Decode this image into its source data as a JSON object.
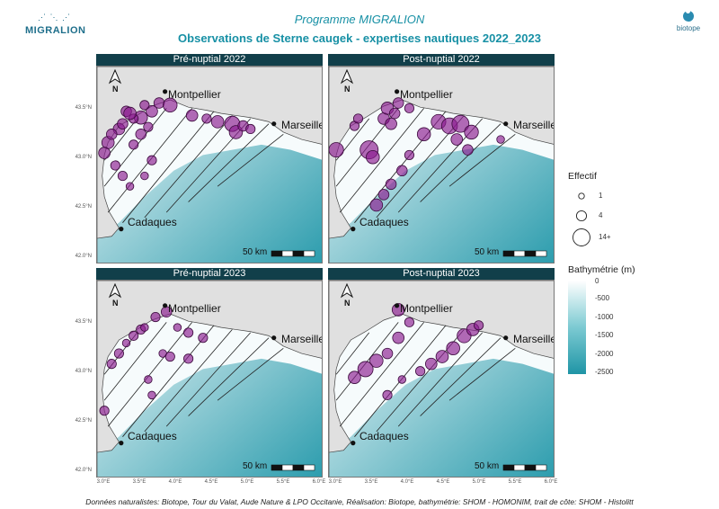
{
  "header": {
    "logo_left": "MIGRALION",
    "logo_right": "biotope",
    "title1": "Programme MIGRALION",
    "title2": "Observations de Sterne caugek - expertises nautiques 2022_2023"
  },
  "panels": [
    {
      "title": "Pré-nuptial 2022"
    },
    {
      "title": "Post-nuptial 2022"
    },
    {
      "title": "Pré-nuptial 2023"
    },
    {
      "title": "Post-nuptial 2023"
    }
  ],
  "map_labels": {
    "cities": [
      "Montpellier",
      "Marseille",
      "Cadaques"
    ],
    "north_arrow": "N",
    "scale": "50 km",
    "lat_ticks": [
      "43.5°N",
      "43.0°N",
      "42.5°N",
      "42.0°N"
    ],
    "lon_ticks": [
      "3.0°E",
      "3.5°E",
      "4.0°E",
      "4.5°E",
      "5.0°E",
      "5.5°E",
      "6.0°E"
    ]
  },
  "legend": {
    "effectif_title": "Effectif",
    "effectif_items": [
      {
        "label": "1",
        "count": 1
      },
      {
        "label": "4",
        "count": 4
      },
      {
        "label": "14+",
        "count": 14
      }
    ],
    "bathy_title": "Bathymétrie (m)",
    "bathy_ticks": [
      "0",
      "-500",
      "-1000",
      "-1500",
      "-2000",
      "-2500"
    ]
  },
  "colors": {
    "header_band": "#113f4a",
    "land": "#e0e0e0",
    "sea_shallow": "#ffffff",
    "sea_deep": "#2b9cad",
    "observation": "#8b1a8f",
    "title": "#1790a5"
  },
  "observations": [
    [
      {
        "lon": 3.35,
        "lat": 43.42,
        "n": 3
      },
      {
        "lon": 3.55,
        "lat": 43.36,
        "n": 6
      },
      {
        "lon": 3.7,
        "lat": 43.42,
        "n": 4
      },
      {
        "lon": 3.45,
        "lat": 43.35,
        "n": 2
      },
      {
        "lon": 3.25,
        "lat": 43.25,
        "n": 4
      },
      {
        "lon": 3.1,
        "lat": 43.12,
        "n": 5
      },
      {
        "lon": 3.05,
        "lat": 43.02,
        "n": 4
      },
      {
        "lon": 3.15,
        "lat": 43.2,
        "n": 3
      },
      {
        "lon": 3.3,
        "lat": 43.3,
        "n": 3
      },
      {
        "lon": 3.4,
        "lat": 43.4,
        "n": 5
      },
      {
        "lon": 3.6,
        "lat": 43.48,
        "n": 2
      },
      {
        "lon": 3.8,
        "lat": 43.5,
        "n": 3
      },
      {
        "lon": 3.95,
        "lat": 43.48,
        "n": 7
      },
      {
        "lon": 4.25,
        "lat": 43.38,
        "n": 4
      },
      {
        "lon": 4.45,
        "lat": 43.35,
        "n": 2
      },
      {
        "lon": 4.6,
        "lat": 43.32,
        "n": 5
      },
      {
        "lon": 4.8,
        "lat": 43.3,
        "n": 9
      },
      {
        "lon": 4.85,
        "lat": 43.22,
        "n": 6
      },
      {
        "lon": 4.95,
        "lat": 43.28,
        "n": 3
      },
      {
        "lon": 5.05,
        "lat": 43.25,
        "n": 2
      },
      {
        "lon": 3.45,
        "lat": 43.1,
        "n": 2
      },
      {
        "lon": 3.55,
        "lat": 43.2,
        "n": 3
      },
      {
        "lon": 3.2,
        "lat": 42.9,
        "n": 2
      },
      {
        "lon": 3.3,
        "lat": 42.8,
        "n": 2
      },
      {
        "lon": 3.4,
        "lat": 42.7,
        "n": 1
      },
      {
        "lon": 3.6,
        "lat": 42.8,
        "n": 1
      },
      {
        "lon": 3.7,
        "lat": 42.95,
        "n": 2
      },
      {
        "lon": 3.65,
        "lat": 43.27,
        "n": 2
      }
    ],
    [
      {
        "lon": 3.05,
        "lat": 43.05,
        "n": 8
      },
      {
        "lon": 3.5,
        "lat": 43.05,
        "n": 14
      },
      {
        "lon": 3.55,
        "lat": 42.98,
        "n": 6
      },
      {
        "lon": 3.7,
        "lat": 43.35,
        "n": 4
      },
      {
        "lon": 3.75,
        "lat": 43.45,
        "n": 5
      },
      {
        "lon": 3.85,
        "lat": 43.4,
        "n": 3
      },
      {
        "lon": 3.9,
        "lat": 43.5,
        "n": 3
      },
      {
        "lon": 4.05,
        "lat": 43.45,
        "n": 2
      },
      {
        "lon": 4.25,
        "lat": 43.2,
        "n": 6
      },
      {
        "lon": 4.45,
        "lat": 43.32,
        "n": 8
      },
      {
        "lon": 4.6,
        "lat": 43.28,
        "n": 10
      },
      {
        "lon": 4.75,
        "lat": 43.3,
        "n": 12
      },
      {
        "lon": 4.9,
        "lat": 43.22,
        "n": 7
      },
      {
        "lon": 4.7,
        "lat": 43.15,
        "n": 4
      },
      {
        "lon": 4.85,
        "lat": 43.05,
        "n": 3
      },
      {
        "lon": 3.3,
        "lat": 43.28,
        "n": 2
      },
      {
        "lon": 3.35,
        "lat": 43.35,
        "n": 2
      },
      {
        "lon": 3.6,
        "lat": 42.52,
        "n": 5
      },
      {
        "lon": 3.7,
        "lat": 42.62,
        "n": 3
      },
      {
        "lon": 3.8,
        "lat": 42.72,
        "n": 3
      },
      {
        "lon": 3.95,
        "lat": 42.85,
        "n": 3
      },
      {
        "lon": 4.05,
        "lat": 43.0,
        "n": 2
      },
      {
        "lon": 5.3,
        "lat": 43.15,
        "n": 1
      },
      {
        "lon": 3.8,
        "lat": 43.3,
        "n": 4
      }
    ],
    [
      {
        "lon": 3.9,
        "lat": 43.55,
        "n": 3
      },
      {
        "lon": 3.75,
        "lat": 43.5,
        "n": 2
      },
      {
        "lon": 3.55,
        "lat": 43.38,
        "n": 2
      },
      {
        "lon": 3.45,
        "lat": 43.32,
        "n": 2
      },
      {
        "lon": 3.35,
        "lat": 43.25,
        "n": 1
      },
      {
        "lon": 3.25,
        "lat": 43.15,
        "n": 2
      },
      {
        "lon": 3.15,
        "lat": 43.05,
        "n": 2
      },
      {
        "lon": 4.2,
        "lat": 43.35,
        "n": 2
      },
      {
        "lon": 4.4,
        "lat": 43.3,
        "n": 2
      },
      {
        "lon": 4.2,
        "lat": 43.1,
        "n": 2
      },
      {
        "lon": 3.85,
        "lat": 43.15,
        "n": 1
      },
      {
        "lon": 3.05,
        "lat": 42.6,
        "n": 2
      },
      {
        "lon": 3.7,
        "lat": 42.75,
        "n": 1
      },
      {
        "lon": 3.65,
        "lat": 42.9,
        "n": 1
      },
      {
        "lon": 3.95,
        "lat": 43.12,
        "n": 2
      },
      {
        "lon": 4.05,
        "lat": 43.4,
        "n": 1
      },
      {
        "lon": 3.6,
        "lat": 43.4,
        "n": 1
      }
    ],
    [
      {
        "lon": 3.9,
        "lat": 43.57,
        "n": 5
      },
      {
        "lon": 4.05,
        "lat": 43.45,
        "n": 2
      },
      {
        "lon": 3.6,
        "lat": 43.08,
        "n": 6
      },
      {
        "lon": 3.45,
        "lat": 43.0,
        "n": 9
      },
      {
        "lon": 3.3,
        "lat": 42.92,
        "n": 5
      },
      {
        "lon": 3.75,
        "lat": 43.15,
        "n": 3
      },
      {
        "lon": 3.9,
        "lat": 43.3,
        "n": 4
      },
      {
        "lon": 4.35,
        "lat": 43.05,
        "n": 4
      },
      {
        "lon": 4.5,
        "lat": 43.12,
        "n": 5
      },
      {
        "lon": 4.65,
        "lat": 43.2,
        "n": 6
      },
      {
        "lon": 4.8,
        "lat": 43.32,
        "n": 7
      },
      {
        "lon": 4.92,
        "lat": 43.38,
        "n": 5
      },
      {
        "lon": 5.0,
        "lat": 43.42,
        "n": 2
      },
      {
        "lon": 3.75,
        "lat": 42.75,
        "n": 2
      },
      {
        "lon": 3.95,
        "lat": 42.9,
        "n": 1
      },
      {
        "lon": 4.2,
        "lat": 42.98,
        "n": 2
      }
    ]
  ]
}
